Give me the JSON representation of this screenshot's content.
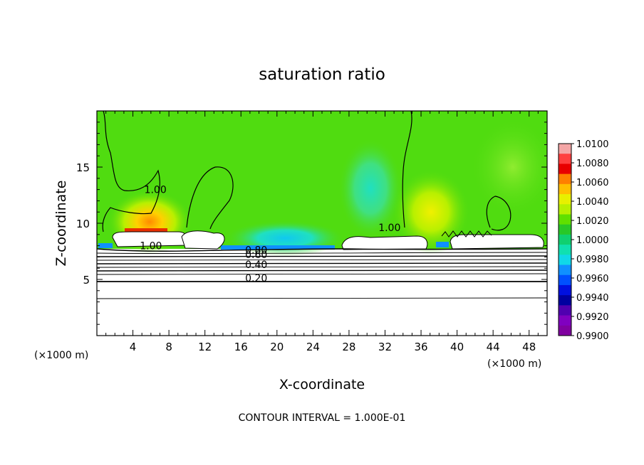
{
  "chart_data": {
    "type": "heatmap",
    "title": "saturation ratio",
    "xlabel": "X-coordinate",
    "ylabel": "Z-coordinate",
    "x_unit": "(×1000 m)",
    "y_unit": "(×1000 m)",
    "xlim": [
      0,
      50
    ],
    "ylim": [
      0,
      20
    ],
    "x_ticks": [
      4,
      8,
      12,
      16,
      20,
      24,
      28,
      32,
      36,
      40,
      44,
      48
    ],
    "y_ticks": [
      5,
      10,
      15
    ],
    "footer": "CONTOUR INTERVAL = 1.000E-01",
    "colorbar": {
      "labels": [
        "1.0100",
        "1.0080",
        "1.0060",
        "1.0040",
        "1.0020",
        "1.0000",
        "0.9980",
        "0.9960",
        "0.9940",
        "0.9920",
        "0.9900"
      ],
      "colors": [
        "#f4a6a6",
        "#ff4040",
        "#e80000",
        "#ff8000",
        "#ffc000",
        "#e8f000",
        "#b8f000",
        "#60e000",
        "#28c828",
        "#10d070",
        "#10e0b0",
        "#10d8e8",
        "#1090ff",
        "#0050ff",
        "#0010e0",
        "#0000a0",
        "#5000b0",
        "#8000c0",
        "#8000a0"
      ],
      "min": 0.99,
      "max": 1.01
    },
    "contour_labels": [
      {
        "text": "1.00",
        "x": 6.5,
        "z": 12.7
      },
      {
        "text": "1.00",
        "x": 6.0,
        "z": 7.7
      },
      {
        "text": "1.00",
        "x": 32.5,
        "z": 9.3
      },
      {
        "text": "0.80",
        "x": 17.7,
        "z": 7.3
      },
      {
        "text": "0.60",
        "x": 17.7,
        "z": 6.9
      },
      {
        "text": "0.40",
        "x": 17.7,
        "z": 6.0
      },
      {
        "text": "0.20",
        "x": 17.7,
        "z": 4.8
      }
    ]
  }
}
